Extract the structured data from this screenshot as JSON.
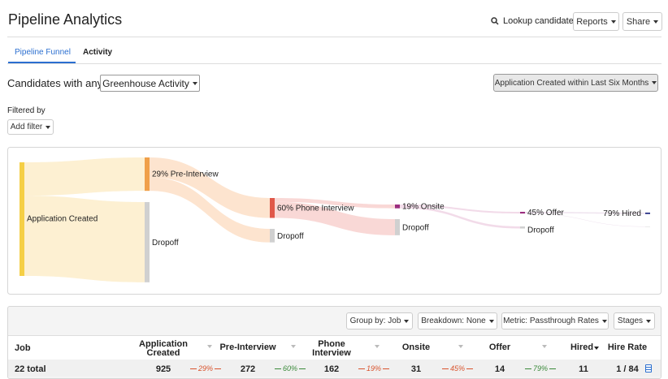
{
  "header": {
    "title": "Pipeline Analytics",
    "lookup": "Lookup candidate",
    "reports": "Reports",
    "share": "Share"
  },
  "tabs": [
    "Pipeline Funnel",
    "Activity"
  ],
  "filters": {
    "prefix": "Candidates with any",
    "activity": "Greenhouse Activity",
    "date_range": "Application Created within Last Six Months",
    "filtered_by": "Filtered by",
    "add_filter": "Add filter"
  },
  "funnel": {
    "stages": [
      "Application Created",
      "29% Pre-Interview",
      "60% Phone Interview",
      "19% Onsite",
      "45% Offer",
      "79% Hired"
    ],
    "dropoff": "Dropoff"
  },
  "table": {
    "toolbar": [
      "Group by: Job",
      "Breakdown: None",
      "Metric: Passthrough Rates",
      "Stages"
    ],
    "columns": [
      "Job",
      "Application Created",
      "Pre-Interview",
      "Phone Interview",
      "Onsite",
      "Offer",
      "Hired",
      "Hire Rate"
    ],
    "total": {
      "label": "22 total",
      "counts": [
        925,
        272,
        162,
        31,
        14,
        11
      ],
      "rates": [
        "29%",
        "60%",
        "19%",
        "45%",
        "79%"
      ],
      "hire_rate": "1 / 84"
    }
  }
}
